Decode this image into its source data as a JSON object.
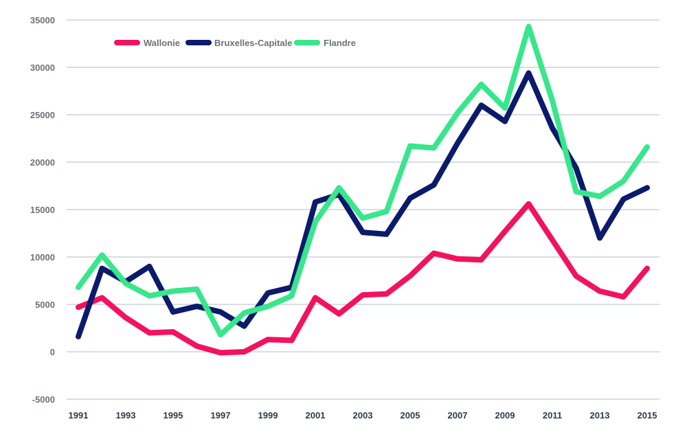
{
  "chart_data": {
    "type": "line",
    "title": "",
    "xlabel": "",
    "ylabel": "",
    "ylim": [
      -5000,
      35000
    ],
    "y_ticks": [
      35000,
      30000,
      25000,
      20000,
      15000,
      10000,
      5000,
      0,
      -5000
    ],
    "y_tick_labels": [
      "35000",
      "30000",
      "25000",
      "20000",
      "15000",
      "10000",
      "5000",
      "0",
      "-5000"
    ],
    "x": [
      1991,
      1992,
      1993,
      1994,
      1995,
      1996,
      1997,
      1998,
      1999,
      2000,
      2001,
      2002,
      2003,
      2004,
      2005,
      2006,
      2007,
      2008,
      2009,
      2010,
      2011,
      2012,
      2013,
      2014,
      2015
    ],
    "x_tick_labels": [
      "1991",
      "1993",
      "1995",
      "1997",
      "1999",
      "2001",
      "2003",
      "2005",
      "2007",
      "2009",
      "2011",
      "2013",
      "2015"
    ],
    "grid": true,
    "legend_position": "top-left",
    "series": [
      {
        "name": "Wallonie",
        "color": "#f2125e",
        "values": [
          4700,
          5700,
          3600,
          2000,
          2100,
          600,
          -100,
          0,
          1300,
          1200,
          5700,
          4000,
          6000,
          6100,
          8000,
          10400,
          9800,
          9700,
          12700,
          15600,
          11800,
          8000,
          6400,
          5800,
          8800
        ]
      },
      {
        "name": "Bruxelles-Capitale",
        "color": "#0c1a6b",
        "values": [
          1600,
          8800,
          7400,
          9000,
          4200,
          4800,
          4200,
          2700,
          6200,
          6800,
          15800,
          16600,
          12600,
          12400,
          16200,
          17600,
          22000,
          26000,
          24300,
          29400,
          23600,
          19400,
          12000,
          16100,
          17300
        ]
      },
      {
        "name": "Flandre",
        "color": "#38e68b",
        "values": [
          6800,
          10200,
          7200,
          5900,
          6400,
          6600,
          1800,
          4100,
          4800,
          5900,
          13700,
          17300,
          14100,
          14800,
          21700,
          21500,
          25200,
          28200,
          25700,
          34300,
          26500,
          16900,
          16400,
          18000,
          21600
        ]
      }
    ]
  }
}
